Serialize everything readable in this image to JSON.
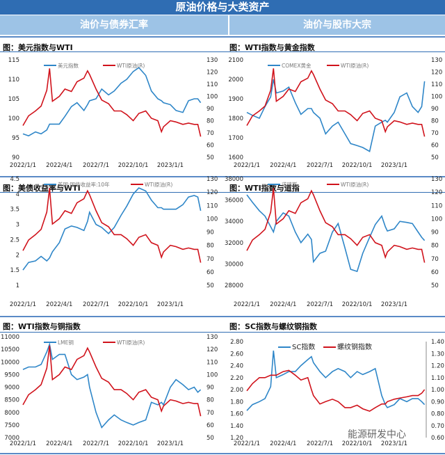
{
  "header": {
    "title": "原油价格与大类资产",
    "left_section": "油价与债券汇率",
    "right_section": "油价与股市大宗"
  },
  "colors": {
    "blue": "#2e86c8",
    "red": "#d0121b",
    "header": "#2f6db3",
    "subheader": "#9dc3e6"
  },
  "watermark": "能源研发中心",
  "dates": [
    "2022-01-01",
    "2022-01-15",
    "2022-02-01",
    "2022-02-15",
    "2022-03-01",
    "2022-03-08",
    "2022-03-15",
    "2022-04-01",
    "2022-04-15",
    "2022-05-01",
    "2022-05-15",
    "2022-06-01",
    "2022-06-10",
    "2022-06-15",
    "2022-07-01",
    "2022-07-15",
    "2022-08-01",
    "2022-08-15",
    "2022-09-01",
    "2022-09-15",
    "2022-10-01",
    "2022-10-15",
    "2022-11-01",
    "2022-11-15",
    "2022-12-01",
    "2022-12-10",
    "2022-12-15",
    "2023-01-01",
    "2023-01-15",
    "2023-02-01",
    "2023-02-15",
    "2023-03-01",
    "2023-03-10",
    "2023-03-17"
  ],
  "chart_data": [
    {
      "type": "line",
      "title": "图：美元指数与WTI",
      "xticks": [
        "2022/1/1",
        "2022/4/1",
        "2022/7/1",
        "2022/10/1",
        "2023/1/1"
      ],
      "ylim": [
        90,
        115
      ],
      "yticks": [
        "90",
        "95",
        "100",
        "105",
        "110",
        "115"
      ],
      "y2lim": [
        50,
        130
      ],
      "y2ticks": [
        "50",
        "60",
        "70",
        "80",
        "90",
        "100",
        "110",
        "120",
        "130"
      ],
      "legend": "top",
      "series": [
        {
          "name": "美元指数",
          "axis": "left",
          "color": "blue",
          "values": [
            96,
            95.5,
            96.5,
            96,
            97,
            98.5,
            98.5,
            98.5,
            100.5,
            103,
            104,
            102,
            103.5,
            104.5,
            105,
            107.5,
            106,
            107,
            109,
            110,
            112,
            113,
            111,
            107,
            105,
            104.5,
            104,
            103.5,
            102,
            101.5,
            104.5,
            105,
            105,
            104
          ]
        },
        {
          "name": "WTI原油(R)",
          "axis": "right",
          "color": "red",
          "values": [
            76,
            84,
            88,
            92,
            105,
            123,
            96,
            100,
            106,
            104,
            112,
            115,
            121,
            118,
            106,
            97,
            94,
            88,
            88,
            85,
            80,
            86,
            88,
            82,
            80,
            71,
            75,
            80,
            79,
            77,
            78,
            77,
            77,
            67
          ]
        }
      ]
    },
    {
      "type": "line",
      "title": "图：WTI指数与黄金指数",
      "xticks": [
        "2022/1/1",
        "2022/4/1",
        "2022/7/1",
        "2022/10/1",
        "2023/1/1"
      ],
      "ylim": [
        1600,
        2100
      ],
      "yticks": [
        "1600",
        "1700",
        "1800",
        "1900",
        "2000",
        "2100"
      ],
      "y2lim": [
        50,
        130
      ],
      "y2ticks": [
        "50",
        "60",
        "70",
        "80",
        "90",
        "100",
        "110",
        "120",
        "130"
      ],
      "legend": "top",
      "series": [
        {
          "name": "COMEX黄金",
          "axis": "left",
          "color": "blue",
          "values": [
            1830,
            1815,
            1800,
            1860,
            1910,
            2000,
            1930,
            1940,
            1960,
            1880,
            1820,
            1850,
            1850,
            1830,
            1800,
            1720,
            1760,
            1780,
            1720,
            1670,
            1660,
            1650,
            1630,
            1760,
            1780,
            1790,
            1780,
            1830,
            1910,
            1930,
            1860,
            1830,
            1860,
            1990
          ]
        },
        {
          "name": "WTI原油(R)",
          "axis": "right",
          "color": "red",
          "values": [
            76,
            84,
            88,
            92,
            105,
            123,
            96,
            100,
            106,
            104,
            112,
            115,
            121,
            118,
            106,
            97,
            94,
            88,
            88,
            85,
            80,
            86,
            88,
            82,
            80,
            71,
            75,
            80,
            79,
            77,
            78,
            77,
            77,
            67
          ]
        }
      ]
    },
    {
      "type": "line",
      "title": "图：美债收益率与WTI",
      "xticks": [
        "2022/1/1",
        "2022/4/1",
        "2022/7/1",
        "2022/10/1",
        "2023/1/1"
      ],
      "ylim": [
        1,
        4.5
      ],
      "yticks": [
        "1",
        "1.5",
        "2",
        "2.5",
        "3",
        "3.5",
        "4",
        "4.5"
      ],
      "y2lim": [
        50,
        130
      ],
      "y2ticks": [
        "50",
        "60",
        "70",
        "80",
        "90",
        "100",
        "110",
        "120",
        "130"
      ],
      "legend": "top",
      "series": [
        {
          "name": "美国:国债收益率:10年",
          "axis": "left",
          "color": "blue",
          "values": [
            1.5,
            1.75,
            1.8,
            1.95,
            1.8,
            1.9,
            2.1,
            2.4,
            2.85,
            2.95,
            2.9,
            2.8,
            3.1,
            3.4,
            3.0,
            2.9,
            2.7,
            2.9,
            3.3,
            3.6,
            4.0,
            4.2,
            4.1,
            3.8,
            3.55,
            3.55,
            3.5,
            3.5,
            3.5,
            3.65,
            3.9,
            3.95,
            3.9,
            3.45
          ]
        },
        {
          "name": "WTI原油(R)",
          "axis": "right",
          "color": "red",
          "values": [
            76,
            84,
            88,
            92,
            105,
            123,
            96,
            100,
            106,
            104,
            112,
            115,
            121,
            118,
            106,
            97,
            94,
            88,
            88,
            85,
            80,
            86,
            88,
            82,
            80,
            71,
            75,
            80,
            79,
            77,
            78,
            77,
            77,
            67
          ]
        }
      ]
    },
    {
      "type": "line",
      "title": "图：WTI指数与道指",
      "xticks": [
        "2022/1/1",
        "2022/4/1",
        "2022/7/1",
        "2022/10/1",
        "2023/1/1"
      ],
      "ylim": [
        28000,
        38000
      ],
      "yticks": [
        "28000",
        "30000",
        "32000",
        "34000",
        "36000",
        "38000"
      ],
      "y2lim": [
        50,
        130
      ],
      "y2ticks": [
        "50",
        "60",
        "70",
        "80",
        "90",
        "100",
        "110",
        "120",
        "130"
      ],
      "legend": "top",
      "series": [
        {
          "name": "道琼斯",
          "axis": "left",
          "color": "blue",
          "values": [
            36500,
            35800,
            35000,
            34500,
            33500,
            33000,
            34000,
            34800,
            34500,
            33000,
            32000,
            32800,
            32300,
            30200,
            31000,
            31200,
            33000,
            33800,
            31500,
            29500,
            29300,
            31000,
            32500,
            33700,
            34500,
            33500,
            33100,
            33300,
            34000,
            33900,
            33800,
            33000,
            32500,
            32200
          ]
        },
        {
          "name": "WTI原油(R)",
          "axis": "right",
          "color": "red",
          "values": [
            76,
            84,
            88,
            92,
            105,
            123,
            96,
            100,
            106,
            104,
            112,
            115,
            121,
            118,
            106,
            97,
            94,
            88,
            88,
            85,
            80,
            86,
            88,
            82,
            80,
            71,
            75,
            80,
            79,
            77,
            78,
            77,
            77,
            67
          ]
        }
      ]
    },
    {
      "type": "line",
      "title": "图：WTI指数与铜指数",
      "xticks": [
        "2022/1/1",
        "2022/4/1",
        "2022/7/1",
        "2022/10/1",
        "2023/1/1"
      ],
      "ylim": [
        7000,
        11000
      ],
      "yticks": [
        "7000",
        "7500",
        "8000",
        "8500",
        "9000",
        "9500",
        "10000",
        "10500",
        "11000"
      ],
      "y2lim": [
        50,
        130
      ],
      "y2ticks": [
        "50",
        "60",
        "70",
        "80",
        "90",
        "100",
        "110",
        "120",
        "130"
      ],
      "legend": "top",
      "series": [
        {
          "name": "LME铜",
          "axis": "left",
          "color": "blue",
          "values": [
            9700,
            9800,
            9800,
            9900,
            10400,
            10700,
            10100,
            10300,
            10300,
            9500,
            9300,
            9400,
            9500,
            9000,
            8000,
            7400,
            7700,
            7900,
            7700,
            7600,
            7500,
            7600,
            7700,
            8400,
            8300,
            8400,
            8300,
            9000,
            9300,
            9100,
            8900,
            9000,
            8800,
            8900
          ]
        },
        {
          "name": "WTI原油(R)",
          "axis": "right",
          "color": "red",
          "values": [
            76,
            84,
            88,
            92,
            105,
            123,
            96,
            100,
            106,
            104,
            112,
            115,
            121,
            118,
            106,
            97,
            94,
            88,
            88,
            85,
            80,
            86,
            88,
            82,
            80,
            71,
            75,
            80,
            79,
            77,
            78,
            77,
            77,
            67
          ]
        }
      ]
    },
    {
      "type": "line",
      "title": "图：SC指数与螺纹钢指数",
      "xticks": [
        "2022/1/1",
        "2022/4/1",
        "2022/7/1",
        "2022/10/1",
        "2023/1/1"
      ],
      "ylim": [
        1.2,
        2.8
      ],
      "yticks": [
        "1.20",
        "1.40",
        "1.60",
        "1.80",
        "2.00",
        "2.20",
        "2.40",
        "2.60",
        "2.80"
      ],
      "y2lim": [
        0.6,
        1.4
      ],
      "y2ticks": [
        "0.60",
        "0.70",
        "0.80",
        "0.90",
        "1.00",
        "1.10",
        "1.20",
        "1.30",
        "1.40"
      ],
      "legend": "top",
      "series": [
        {
          "name": "SC指数",
          "axis": "left",
          "color": "blue",
          "values": [
            1.65,
            1.75,
            1.8,
            1.85,
            2.05,
            2.65,
            2.2,
            2.25,
            2.3,
            2.3,
            2.4,
            2.5,
            2.55,
            2.45,
            2.3,
            2.2,
            2.3,
            2.35,
            2.3,
            2.2,
            2.3,
            2.25,
            2.3,
            2.35,
            1.9,
            1.75,
            1.7,
            1.75,
            1.85,
            1.8,
            1.85,
            1.85,
            1.8,
            1.75
          ]
        },
        {
          "name": "螺纹钢指数",
          "axis": "right",
          "color": "red",
          "values": [
            0.99,
            1.05,
            1.1,
            1.1,
            1.12,
            1.12,
            1.12,
            1.15,
            1.16,
            1.12,
            1.08,
            1.1,
            1.0,
            0.95,
            0.88,
            0.9,
            0.92,
            0.9,
            0.85,
            0.85,
            0.87,
            0.84,
            0.82,
            0.85,
            0.88,
            0.88,
            0.9,
            0.92,
            0.93,
            0.94,
            0.95,
            0.95,
            0.97,
            1.0
          ]
        }
      ]
    }
  ]
}
